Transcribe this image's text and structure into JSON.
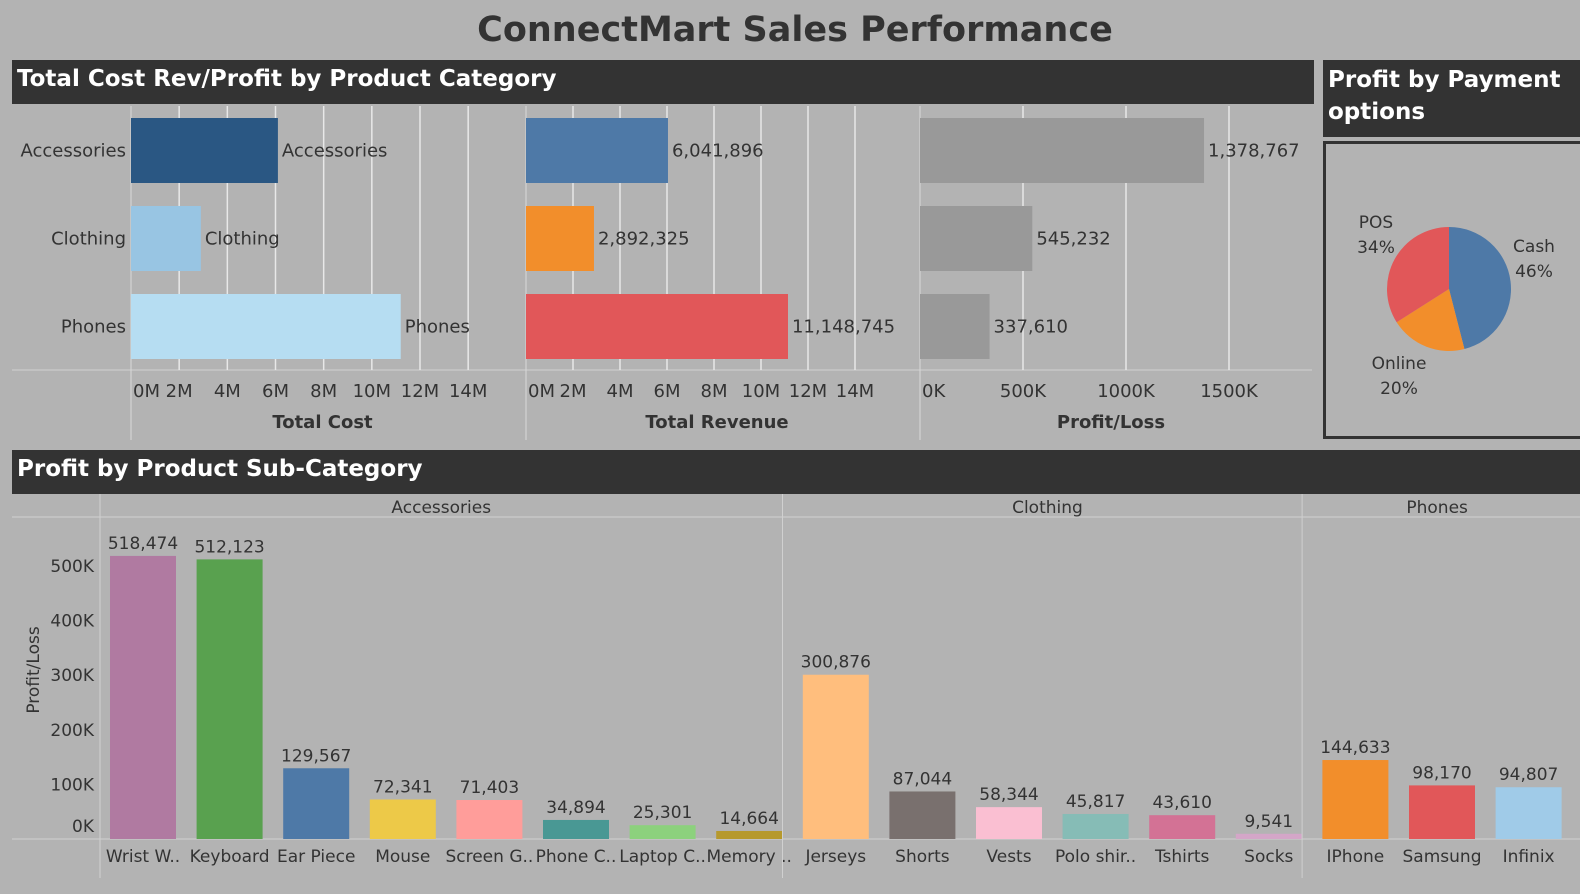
{
  "dashboard": {
    "title": "ConnectMart Sales Performance",
    "top_header": "Total Cost Rev/Profit by Product Category",
    "payment_header": "Profit by Payment options",
    "sub_header": "Profit by Product Sub-Category"
  },
  "chart_data": [
    {
      "type": "bar",
      "orientation": "horizontal",
      "categories": [
        "Accessories",
        "Clothing",
        "Phones"
      ],
      "panels": [
        {
          "xlabel": "Total Cost",
          "ticks": [
            "0M",
            "2M",
            "4M",
            "6M",
            "8M",
            "10M",
            "12M",
            "14M"
          ],
          "xlim": [
            0,
            14000000
          ],
          "values": [
            6100000,
            2900000,
            11200000
          ],
          "data_labels": [
            "Accessories",
            "Clothing",
            "Phones"
          ],
          "colors": [
            "#2a5783",
            "#98c5e3",
            "#b6ddf2"
          ]
        },
        {
          "xlabel": "Total Revenue",
          "ticks": [
            "0M",
            "2M",
            "4M",
            "6M",
            "8M",
            "10M",
            "12M",
            "14M"
          ],
          "xlim": [
            0,
            14000000
          ],
          "values": [
            6041896,
            2892325,
            11148745
          ],
          "data_labels": [
            "6,041,896",
            "2,892,325",
            "11,148,745"
          ],
          "colors": [
            "#4e79a7",
            "#f28e2b",
            "#e15759"
          ]
        },
        {
          "xlabel": "Profit/Loss",
          "ticks": [
            "0K",
            "500K",
            "1000K",
            "1500K"
          ],
          "xlim": [
            0,
            1500000
          ],
          "values": [
            1378767,
            545232,
            337610
          ],
          "data_labels": [
            "1,378,767",
            "545,232",
            "337,610"
          ],
          "colors": [
            "#999999",
            "#999999",
            "#999999"
          ]
        }
      ],
      "grid": true
    },
    {
      "type": "pie",
      "slices": [
        {
          "label": "Cash",
          "percent": "46%",
          "value": 46,
          "color": "#4e79a7"
        },
        {
          "label": "Online",
          "percent": "20%",
          "value": 20,
          "color": "#f28e2b"
        },
        {
          "label": "POS",
          "percent": "34%",
          "value": 34,
          "color": "#e15759"
        }
      ]
    },
    {
      "type": "bar",
      "ylabel": "Profit/Loss",
      "yticks": [
        "0K",
        "100K",
        "200K",
        "300K",
        "400K",
        "500K"
      ],
      "ylim": [
        0,
        520000
      ],
      "groups": [
        {
          "name": "Accessories",
          "bars": [
            {
              "label": "Wrist W..",
              "value": 518474,
              "text": "518,474",
              "color": "#b07aa1"
            },
            {
              "label": "Keyboard",
              "value": 512123,
              "text": "512,123",
              "color": "#59a14f"
            },
            {
              "label": "Ear Piece",
              "value": 129567,
              "text": "129,567",
              "color": "#4e79a7"
            },
            {
              "label": "Mouse",
              "value": 72341,
              "text": "72,341",
              "color": "#edc948"
            },
            {
              "label": "Screen G..",
              "value": 71403,
              "text": "71,403",
              "color": "#ff9d9a"
            },
            {
              "label": "Phone C..",
              "value": 34894,
              "text": "34,894",
              "color": "#499894"
            },
            {
              "label": "Laptop C..",
              "value": 25301,
              "text": "25,301",
              "color": "#8cd17d"
            },
            {
              "label": "Memory ..",
              "value": 14664,
              "text": "14,664",
              "color": "#b6992d"
            }
          ]
        },
        {
          "name": "Clothing",
          "bars": [
            {
              "label": "Jerseys",
              "value": 300876,
              "text": "300,876",
              "color": "#ffbe7d"
            },
            {
              "label": "Shorts",
              "value": 87044,
              "text": "87,044",
              "color": "#79706e"
            },
            {
              "label": "Vests",
              "value": 58344,
              "text": "58,344",
              "color": "#fabfd2"
            },
            {
              "label": "Polo shir..",
              "value": 45817,
              "text": "45,817",
              "color": "#86bcb6"
            },
            {
              "label": "Tshirts",
              "value": 43610,
              "text": "43,610",
              "color": "#d37295"
            },
            {
              "label": "Socks",
              "value": 9541,
              "text": "9,541",
              "color": "#d4a6c8"
            }
          ]
        },
        {
          "name": "Phones",
          "bars": [
            {
              "label": "IPhone",
              "value": 144633,
              "text": "144,633",
              "color": "#f28e2b"
            },
            {
              "label": "Samsung",
              "value": 98170,
              "text": "98,170",
              "color": "#e15759"
            },
            {
              "label": "Infinix",
              "value": 94807,
              "text": "94,807",
              "color": "#a0cbe8"
            }
          ]
        }
      ]
    }
  ]
}
